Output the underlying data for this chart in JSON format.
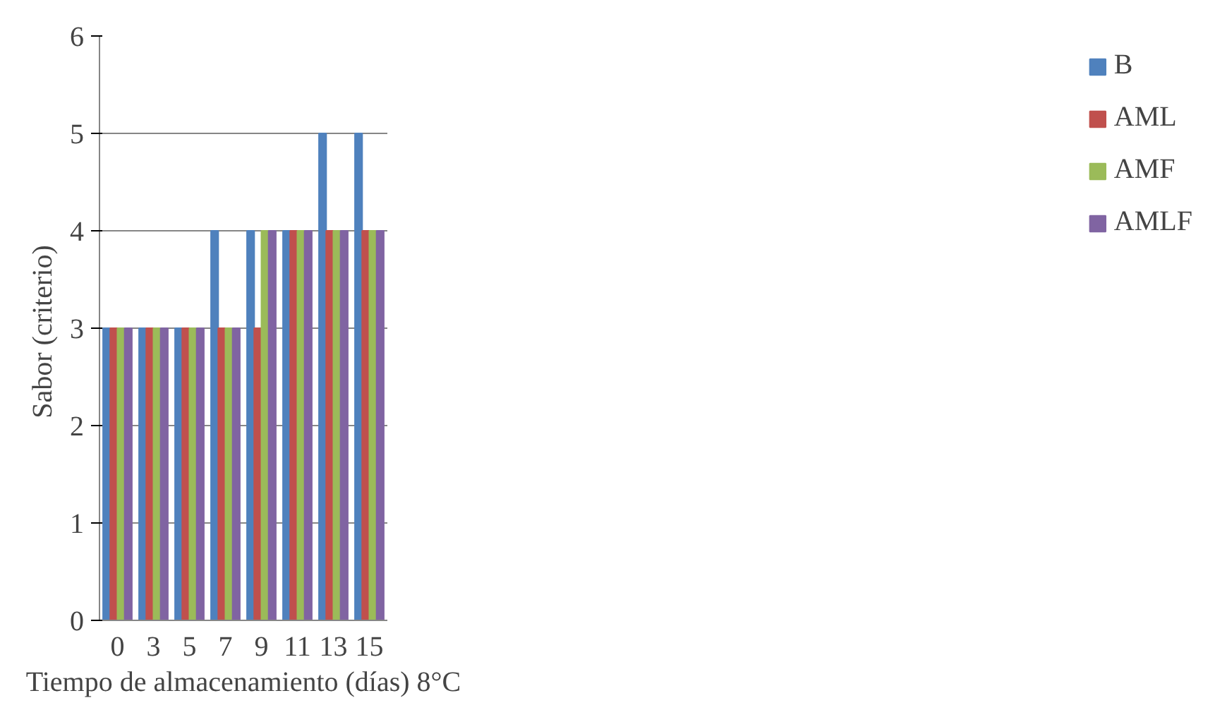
{
  "chart_data": {
    "type": "bar",
    "xlabel": "Tiempo de almacenamiento (días) 8°C",
    "ylabel": "Sabor  (criterio)",
    "categories": [
      "0",
      "3",
      "5",
      "7",
      "9",
      "11",
      "13",
      "15"
    ],
    "series": [
      {
        "name": "B",
        "color": "#4f81bd",
        "values": [
          3,
          3,
          3,
          4,
          4,
          4,
          5,
          5
        ]
      },
      {
        "name": "AML",
        "color": "#c0504d",
        "values": [
          3,
          3,
          3,
          3,
          3,
          4,
          4,
          4
        ]
      },
      {
        "name": "AMF",
        "color": "#9bbb59",
        "values": [
          3,
          3,
          3,
          3,
          4,
          4,
          4,
          4
        ]
      },
      {
        "name": "AMLF",
        "color": "#8064a2",
        "values": [
          3,
          3,
          3,
          3,
          4,
          4,
          4,
          4
        ]
      }
    ],
    "ylim": [
      0,
      6
    ],
    "yticks": [
      0,
      1,
      2,
      3,
      4,
      5,
      6
    ],
    "grid": "y",
    "legend": "right"
  }
}
